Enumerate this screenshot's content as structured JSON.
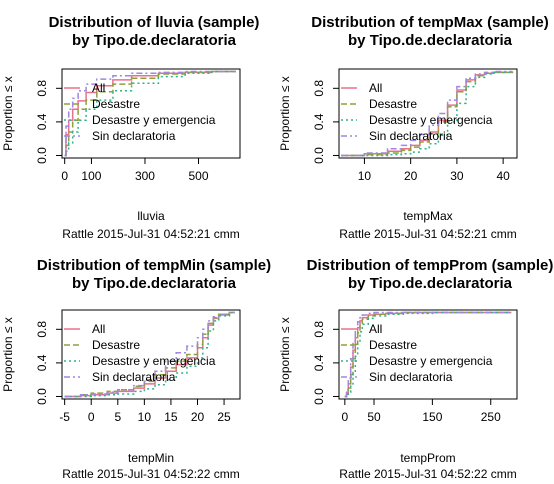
{
  "page_bg": "#ffffff",
  "series_styles": [
    {
      "name": "All",
      "color": "#e8728a",
      "dash": ""
    },
    {
      "name": "Desastre",
      "color": "#8ea03c",
      "dash": "6,3"
    },
    {
      "name": "Desastre y emergencia",
      "color": "#2fb28a",
      "dash": "2,3"
    },
    {
      "name": "Sin declaratoria",
      "color": "#a087e0",
      "dash": "6,3,2,3"
    }
  ],
  "chart_data": [
    {
      "type": "line",
      "title": [
        "Distribution of lluvia (sample)",
        "by Tipo.de.declaratoria"
      ],
      "xlabel": "lluvia",
      "ylabel": "Proportion ≤ x",
      "footer": "Rattle 2015-Jul-31 04:52:21 cmm",
      "xlim": [
        -10,
        655
      ],
      "ylim": [
        -0.03,
        1.03
      ],
      "xticks": [
        0,
        100,
        300,
        500
      ],
      "yticks": [
        0.0,
        0.4,
        0.8
      ],
      "legend_position": "top-left",
      "series": [
        {
          "name": "All",
          "x": [
            0,
            5,
            15,
            30,
            50,
            80,
            120,
            180,
            250,
            350,
            450,
            550,
            640
          ],
          "y": [
            0.0,
            0.25,
            0.42,
            0.55,
            0.65,
            0.75,
            0.83,
            0.9,
            0.95,
            0.98,
            0.99,
            1.0,
            1.0
          ]
        },
        {
          "name": "Desastre",
          "x": [
            0,
            5,
            15,
            30,
            50,
            80,
            120,
            180,
            250,
            350,
            450,
            550,
            640
          ],
          "y": [
            0.0,
            0.12,
            0.28,
            0.42,
            0.55,
            0.66,
            0.76,
            0.85,
            0.92,
            0.97,
            0.99,
            1.0,
            1.0
          ]
        },
        {
          "name": "Desastre y emergencia",
          "x": [
            0,
            5,
            15,
            30,
            50,
            80,
            120,
            180,
            250,
            350,
            450,
            550,
            640
          ],
          "y": [
            0.0,
            0.05,
            0.15,
            0.28,
            0.42,
            0.55,
            0.66,
            0.77,
            0.86,
            0.94,
            0.98,
            1.0,
            1.0
          ]
        },
        {
          "name": "Sin declaratoria",
          "x": [
            0,
            5,
            15,
            30,
            50,
            80,
            120,
            180,
            250,
            350,
            450,
            550,
            640
          ],
          "y": [
            0.0,
            0.35,
            0.55,
            0.68,
            0.77,
            0.85,
            0.91,
            0.95,
            0.98,
            0.99,
            1.0,
            1.0,
            1.0
          ]
        }
      ]
    },
    {
      "type": "line",
      "title": [
        "Distribution of tempMax (sample)",
        "by Tipo.de.declaratoria"
      ],
      "xlabel": "tempMax",
      "ylabel": "Proportion ≤ x",
      "footer": "Rattle 2015-Jul-31 04:52:21 cmm",
      "xlim": [
        4.5,
        43
      ],
      "ylim": [
        -0.03,
        1.03
      ],
      "xticks": [
        10,
        20,
        30,
        40
      ],
      "yticks": [
        0.0,
        0.4,
        0.8
      ],
      "legend_position": "top-left",
      "series": [
        {
          "name": "All",
          "x": [
            5,
            10,
            15,
            18,
            20,
            22,
            24,
            26,
            28,
            30,
            32,
            34,
            36,
            38,
            42
          ],
          "y": [
            0.0,
            0.02,
            0.05,
            0.08,
            0.12,
            0.18,
            0.28,
            0.42,
            0.6,
            0.78,
            0.9,
            0.96,
            0.98,
            0.99,
            1.0
          ]
        },
        {
          "name": "Desastre",
          "x": [
            5,
            10,
            15,
            18,
            20,
            22,
            24,
            26,
            28,
            30,
            32,
            34,
            36,
            38,
            42
          ],
          "y": [
            0.0,
            0.01,
            0.03,
            0.06,
            0.1,
            0.16,
            0.26,
            0.4,
            0.58,
            0.76,
            0.88,
            0.95,
            0.98,
            0.99,
            1.0
          ]
        },
        {
          "name": "Desastre y emergencia",
          "x": [
            5,
            10,
            15,
            18,
            20,
            22,
            24,
            26,
            28,
            30,
            32,
            34,
            36,
            38,
            42
          ],
          "y": [
            0.0,
            0.0,
            0.01,
            0.02,
            0.04,
            0.08,
            0.14,
            0.24,
            0.4,
            0.62,
            0.82,
            0.93,
            0.97,
            0.99,
            1.0
          ]
        },
        {
          "name": "Sin declaratoria",
          "x": [
            5,
            10,
            15,
            18,
            20,
            22,
            24,
            26,
            28,
            30,
            32,
            34,
            36,
            38,
            42
          ],
          "y": [
            0.0,
            0.03,
            0.08,
            0.12,
            0.18,
            0.25,
            0.36,
            0.5,
            0.66,
            0.82,
            0.92,
            0.97,
            0.99,
            1.0,
            1.0
          ]
        }
      ]
    },
    {
      "type": "line",
      "title": [
        "Distribution of tempMin (sample)",
        "by Tipo.de.declaratoria"
      ],
      "xlabel": "tempMin",
      "ylabel": "Proportion ≤ x",
      "footer": "Rattle 2015-Jul-31 04:52:22 cmm",
      "xlim": [
        -5.5,
        28
      ],
      "ylim": [
        -0.03,
        1.03
      ],
      "xticks": [
        -5,
        0,
        5,
        10,
        15,
        20,
        25
      ],
      "yticks": [
        0.0,
        0.4,
        0.8
      ],
      "legend_position": "top-left",
      "series": [
        {
          "name": "All",
          "x": [
            -5,
            -2,
            0,
            3,
            5,
            8,
            10,
            12,
            14,
            16,
            18,
            20,
            21,
            22,
            23,
            24,
            26,
            27
          ],
          "y": [
            0.0,
            0.01,
            0.02,
            0.04,
            0.06,
            0.1,
            0.15,
            0.22,
            0.3,
            0.38,
            0.46,
            0.58,
            0.7,
            0.85,
            0.93,
            0.97,
            1.0,
            1.0
          ]
        },
        {
          "name": "Desastre",
          "x": [
            -5,
            -2,
            0,
            3,
            5,
            8,
            10,
            12,
            14,
            16,
            18,
            20,
            21,
            22,
            23,
            24,
            26,
            27
          ],
          "y": [
            0.0,
            0.02,
            0.04,
            0.06,
            0.08,
            0.12,
            0.18,
            0.26,
            0.34,
            0.42,
            0.5,
            0.62,
            0.74,
            0.87,
            0.94,
            0.98,
            1.0,
            1.0
          ]
        },
        {
          "name": "Desastre y emergencia",
          "x": [
            -5,
            -2,
            0,
            3,
            5,
            8,
            10,
            12,
            14,
            16,
            18,
            20,
            21,
            22,
            23,
            24,
            26,
            27
          ],
          "y": [
            0.0,
            0.0,
            0.01,
            0.02,
            0.03,
            0.06,
            0.09,
            0.14,
            0.2,
            0.28,
            0.36,
            0.46,
            0.58,
            0.78,
            0.9,
            0.96,
            1.0,
            1.0
          ]
        },
        {
          "name": "Sin declaratoria",
          "x": [
            -5,
            -2,
            0,
            3,
            5,
            8,
            10,
            12,
            14,
            16,
            18,
            20,
            21,
            22,
            23,
            24,
            26,
            27
          ],
          "y": [
            0.0,
            0.02,
            0.03,
            0.05,
            0.08,
            0.13,
            0.2,
            0.3,
            0.42,
            0.52,
            0.6,
            0.7,
            0.8,
            0.9,
            0.95,
            0.98,
            1.0,
            1.0
          ]
        }
      ]
    },
    {
      "type": "line",
      "title": [
        "Distribution of tempProm (sample)",
        "by Tipo.de.declaratoria"
      ],
      "xlabel": "tempProm",
      "ylabel": "Proportion ≤ x",
      "footer": "Rattle 2015-Jul-31 04:52:22 cmm",
      "xlim": [
        -10,
        295
      ],
      "ylim": [
        -0.03,
        1.03
      ],
      "xticks": [
        0,
        50,
        150,
        250
      ],
      "yticks": [
        0.0,
        0.4,
        0.8
      ],
      "legend_position": "top-left",
      "series": [
        {
          "name": "All",
          "x": [
            0,
            3,
            6,
            10,
            14,
            18,
            22,
            26,
            30,
            40,
            50,
            70,
            100,
            150,
            200,
            285
          ],
          "y": [
            0.0,
            0.05,
            0.15,
            0.35,
            0.55,
            0.7,
            0.82,
            0.9,
            0.94,
            0.97,
            0.98,
            0.99,
            1.0,
            1.0,
            1.0,
            1.0
          ]
        },
        {
          "name": "Desastre",
          "x": [
            0,
            3,
            6,
            10,
            14,
            18,
            22,
            26,
            30,
            40,
            50,
            70,
            100,
            150,
            200,
            285
          ],
          "y": [
            0.0,
            0.03,
            0.1,
            0.26,
            0.45,
            0.62,
            0.76,
            0.86,
            0.92,
            0.96,
            0.98,
            0.99,
            1.0,
            1.0,
            1.0,
            1.0
          ]
        },
        {
          "name": "Desastre y emergencia",
          "x": [
            0,
            3,
            6,
            10,
            14,
            18,
            22,
            26,
            30,
            40,
            50,
            70,
            100,
            150,
            200,
            285
          ],
          "y": [
            0.0,
            0.01,
            0.05,
            0.15,
            0.3,
            0.48,
            0.64,
            0.77,
            0.86,
            0.93,
            0.96,
            0.98,
            0.99,
            1.0,
            1.0,
            1.0
          ]
        },
        {
          "name": "Sin declaratoria",
          "x": [
            0,
            3,
            6,
            10,
            14,
            18,
            22,
            26,
            30,
            40,
            50,
            70,
            100,
            150,
            200,
            285
          ],
          "y": [
            0.0,
            0.08,
            0.22,
            0.45,
            0.66,
            0.8,
            0.89,
            0.94,
            0.97,
            0.99,
            1.0,
            1.0,
            1.0,
            1.0,
            1.0,
            1.0
          ]
        }
      ]
    }
  ]
}
